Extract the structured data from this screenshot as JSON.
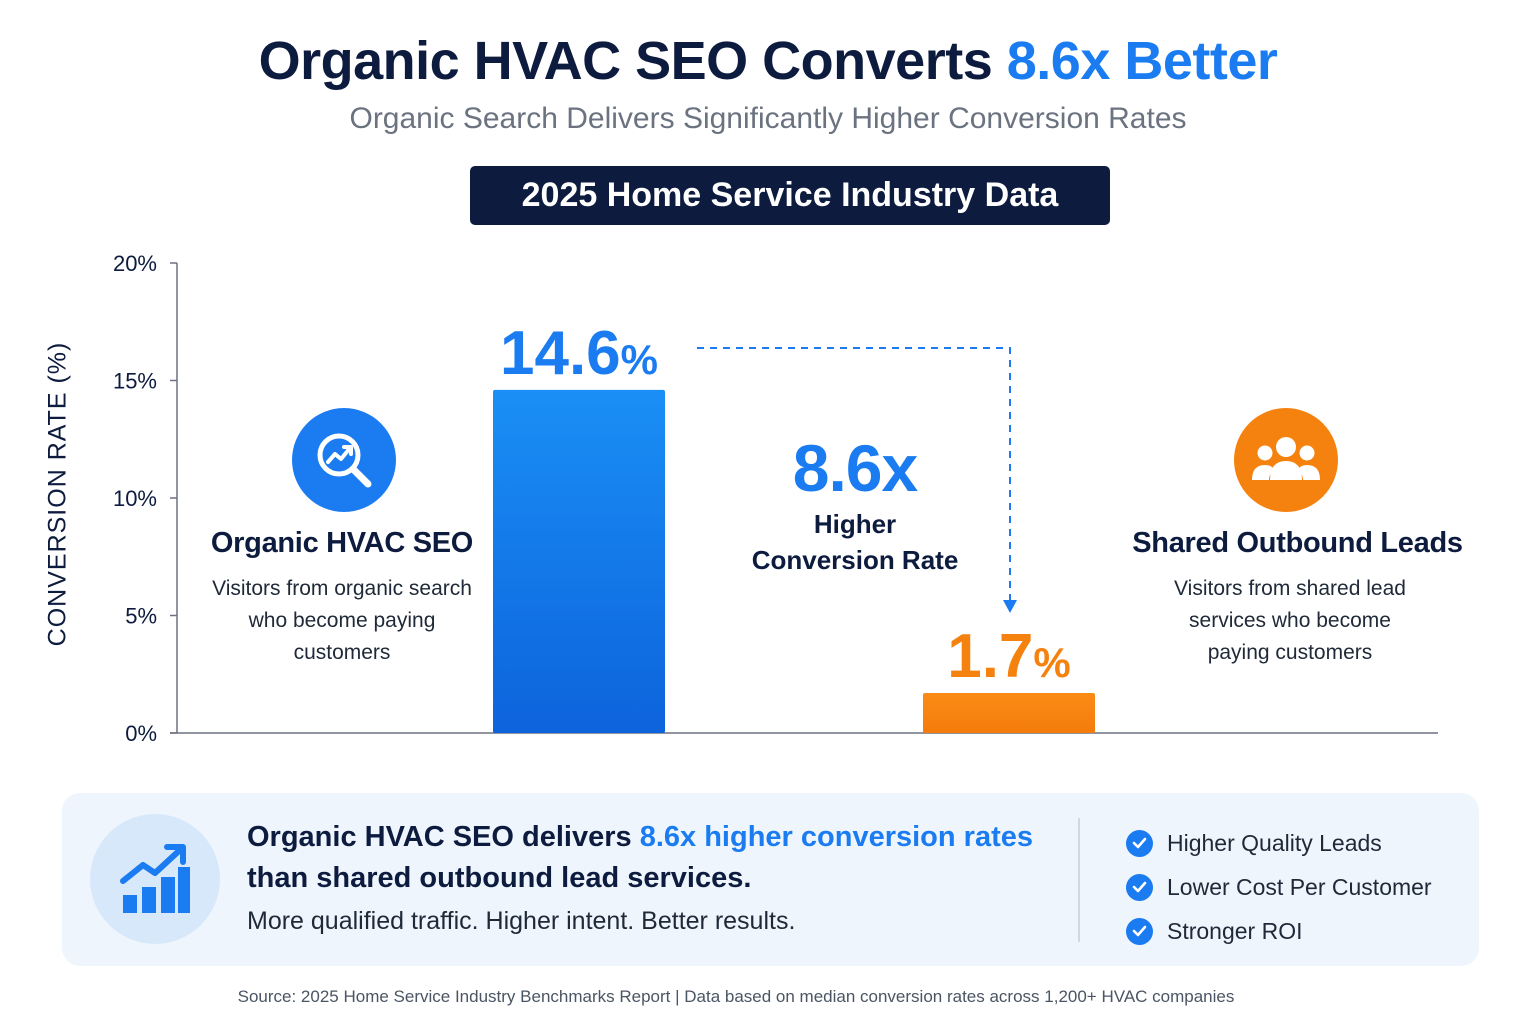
{
  "header": {
    "title_main": "Organic HVAC SEO Converts",
    "title_accent": "8.6x Better",
    "subtitle": "Organic Search Delivers Significantly Higher Conversion Rates",
    "badge": "2025 Home Service Industry Data"
  },
  "chart_data": {
    "type": "bar",
    "categories": [
      "Organic HVAC SEO",
      "Shared Outbound Leads"
    ],
    "values": [
      14.6,
      1.7
    ],
    "value_labels": [
      "14.6%",
      "1.7%"
    ],
    "colors": [
      "#1a7cf0",
      "#f5820f"
    ],
    "ylabel": "CONVERSION RATE (%)",
    "ylim": [
      0,
      20
    ],
    "yticks": [
      0,
      5,
      10,
      15,
      20
    ],
    "ytick_labels": [
      "0%",
      "5%",
      "10%",
      "15%",
      "20%"
    ],
    "grid": false,
    "legend": "none"
  },
  "series_cards": [
    {
      "icon": "search-analytics-icon",
      "title": "Organic HVAC SEO",
      "description_lines": [
        "Visitors from organic search",
        "who become paying",
        "customers"
      ]
    },
    {
      "icon": "users-group-icon",
      "title": "Shared Outbound Leads",
      "description_lines": [
        "Visitors from shared lead",
        "services who become",
        "paying customers"
      ]
    }
  ],
  "comparison": {
    "value": "8.6x",
    "label_line1": "Higher",
    "label_line2": "Conversion Rate"
  },
  "summary": {
    "icon": "growth-chart-icon",
    "headline_part1": "Organic HVAC SEO delivers ",
    "headline_highlight": "8.6x higher conversion rates",
    "headline_part2": "than shared outbound lead services.",
    "subtext": "More qualified traffic. Higher intent. Better results.",
    "benefits": [
      "Higher Quality Leads",
      "Lower Cost Per Customer",
      "Stronger ROI"
    ]
  },
  "footer": {
    "source": "Source: 2025 Home Service Industry Benchmarks Report | Data based on median conversion rates across 1,200+ HVAC companies"
  }
}
